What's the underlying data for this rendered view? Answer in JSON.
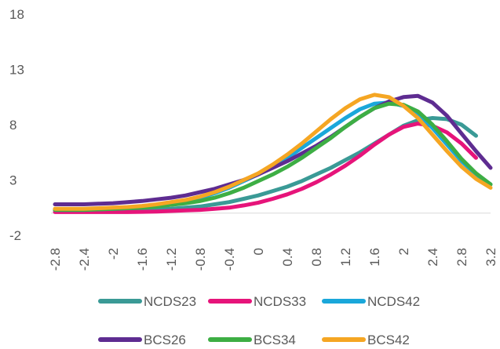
{
  "chart_data": {
    "type": "line",
    "x": [
      -2.8,
      -2.6,
      -2.4,
      -2.2,
      -2.0,
      -1.8,
      -1.6,
      -1.4,
      -1.2,
      -1.0,
      -0.8,
      -0.6,
      -0.4,
      -0.2,
      0.0,
      0.2,
      0.4,
      0.6,
      0.8,
      1.0,
      1.2,
      1.4,
      1.6,
      1.8,
      2.0,
      2.2,
      2.4,
      2.6,
      2.8,
      3.0,
      3.2
    ],
    "x_tick_labels": [
      "-2.8",
      "-2.4",
      "-2",
      "-1.6",
      "-1.2",
      "-0.8",
      "-0.4",
      "0",
      "0.4",
      "0.8",
      "1.2",
      "1.6",
      "2",
      "2.4",
      "2.8",
      "3.2"
    ],
    "y_tick_labels": [
      "18",
      "13",
      "8",
      "3",
      "-2"
    ],
    "ylim": [
      -2,
      18
    ],
    "xlim": [
      -2.8,
      3.2
    ],
    "grid": false,
    "legend_position": "bottom",
    "series": [
      {
        "name": "NCDS23",
        "color": "#3A9A96",
        "values": [
          0.3,
          0.3,
          0.3,
          0.3,
          0.3,
          0.3,
          0.3,
          0.35,
          0.4,
          0.5,
          0.6,
          0.8,
          1.0,
          1.3,
          1.6,
          2.0,
          2.4,
          2.9,
          3.5,
          4.1,
          4.8,
          5.5,
          6.3,
          7.1,
          7.9,
          8.4,
          8.6,
          8.5,
          8.0,
          7.0,
          null
        ]
      },
      {
        "name": "NCDS33",
        "color": "#E6147A",
        "values": [
          0.1,
          0.1,
          0.1,
          0.1,
          0.1,
          0.1,
          0.12,
          0.15,
          0.2,
          0.25,
          0.3,
          0.4,
          0.5,
          0.7,
          0.95,
          1.3,
          1.7,
          2.2,
          2.8,
          3.5,
          4.3,
          5.2,
          6.2,
          7.1,
          7.8,
          8.1,
          7.9,
          7.3,
          6.3,
          5.0,
          null
        ]
      },
      {
        "name": "NCDS42",
        "color": "#1AA7DA",
        "values": [
          0.3,
          0.3,
          0.3,
          0.35,
          0.4,
          0.45,
          0.55,
          0.7,
          0.9,
          1.1,
          1.4,
          1.8,
          2.3,
          2.9,
          3.5,
          4.2,
          5.0,
          5.9,
          6.8,
          7.7,
          8.6,
          9.4,
          9.9,
          10.0,
          9.7,
          9.0,
          7.7,
          6.2,
          4.7,
          3.5,
          2.6
        ]
      },
      {
        "name": "BCS26",
        "color": "#5E2C91",
        "values": [
          0.8,
          0.8,
          0.8,
          0.85,
          0.9,
          1.0,
          1.1,
          1.25,
          1.4,
          1.6,
          1.9,
          2.2,
          2.6,
          3.0,
          3.5,
          4.1,
          4.7,
          5.4,
          6.1,
          6.9,
          7.8,
          8.7,
          9.5,
          10.1,
          10.5,
          10.6,
          10.0,
          8.8,
          7.2,
          5.6,
          4.1
        ]
      },
      {
        "name": "BCS34",
        "color": "#3DAE44",
        "values": [
          0.3,
          0.3,
          0.3,
          0.35,
          0.4,
          0.45,
          0.5,
          0.6,
          0.75,
          0.9,
          1.1,
          1.4,
          1.8,
          2.3,
          2.9,
          3.5,
          4.2,
          5.0,
          5.9,
          6.8,
          7.8,
          8.7,
          9.5,
          9.9,
          9.8,
          9.2,
          8.0,
          6.5,
          4.9,
          3.6,
          2.6
        ]
      },
      {
        "name": "BCS42",
        "color": "#F5A623",
        "values": [
          0.4,
          0.4,
          0.4,
          0.45,
          0.5,
          0.55,
          0.65,
          0.8,
          1.0,
          1.2,
          1.5,
          1.9,
          2.4,
          3.0,
          3.6,
          4.4,
          5.3,
          6.3,
          7.4,
          8.5,
          9.5,
          10.3,
          10.7,
          10.5,
          9.7,
          8.6,
          7.1,
          5.6,
          4.2,
          3.1,
          2.3
        ]
      }
    ]
  }
}
